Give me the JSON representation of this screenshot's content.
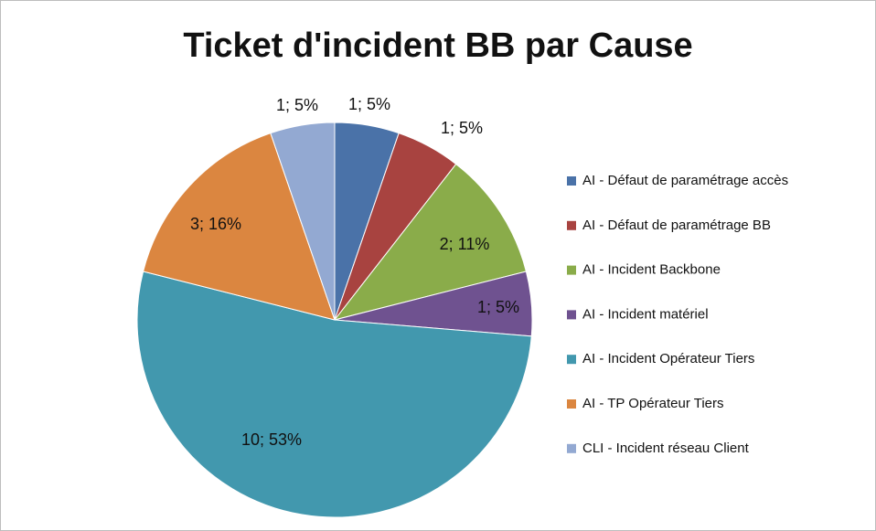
{
  "chart_data": {
    "type": "pie",
    "title": "Ticket d'incident BB par Cause",
    "categories": [
      "AI - Défaut de paramétrage accès",
      "AI - Défaut de paramétrage BB",
      "AI - Incident Backbone",
      "AI - Incident matériel",
      "AI - Incident Opérateur Tiers",
      "AI - TP Opérateur Tiers",
      "CLI - Incident réseau Client"
    ],
    "values": [
      1,
      1,
      2,
      1,
      10,
      3,
      1
    ],
    "value_labels": [
      "1; 5%",
      "1; 5%",
      "2; 11%",
      "1; 5%",
      "10; 53%",
      "3; 16%",
      "1; 5%"
    ],
    "colors": [
      "#4a72a8",
      "#a84340",
      "#8aac4a",
      "#6f5290",
      "#4298ae",
      "#db8640",
      "#93a9d2"
    ],
    "legend": "right"
  }
}
